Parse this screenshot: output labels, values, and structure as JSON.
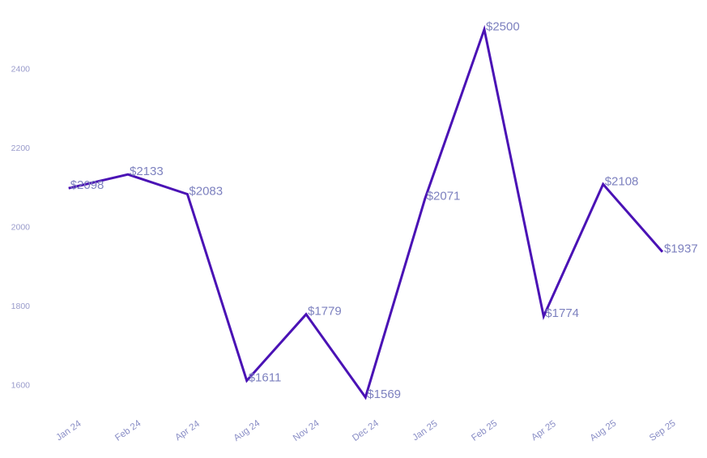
{
  "chart_data": {
    "type": "line",
    "title": "",
    "xlabel": "",
    "ylabel": "",
    "grid": false,
    "legend_position": "none",
    "categories": [
      "Jan 24",
      "Feb 24",
      "Apr 24",
      "Aug 24",
      "Nov 24",
      "Dec 24",
      "Jan 25",
      "Feb 25",
      "Apr 25",
      "Aug 25",
      "Sep 25"
    ],
    "series": [
      {
        "name": "monthly-values",
        "values": [
          2098,
          2133,
          2083,
          1611,
          1779,
          1569,
          2071,
          2500,
          1774,
          2108,
          1937
        ]
      }
    ],
    "point_labels": [
      "$2098",
      "$2133",
      "$2083",
      "$1611",
      "$1779",
      "$1569",
      "$2071",
      "$2500",
      "$1774",
      "$2108",
      "$1937"
    ],
    "y_ticks": [
      "1600",
      "1800",
      "2000",
      "2200",
      "2400"
    ],
    "y_tick_values": [
      1600,
      1800,
      2000,
      2200,
      2400
    ],
    "ylim": [
      1510,
      2520
    ],
    "colors": {
      "line": "#4a12b5",
      "point_label": "#7d81bf",
      "x_tick_label": "#8a8ec6",
      "y_tick_label": "#999bcb",
      "background": "#ffffff"
    }
  }
}
